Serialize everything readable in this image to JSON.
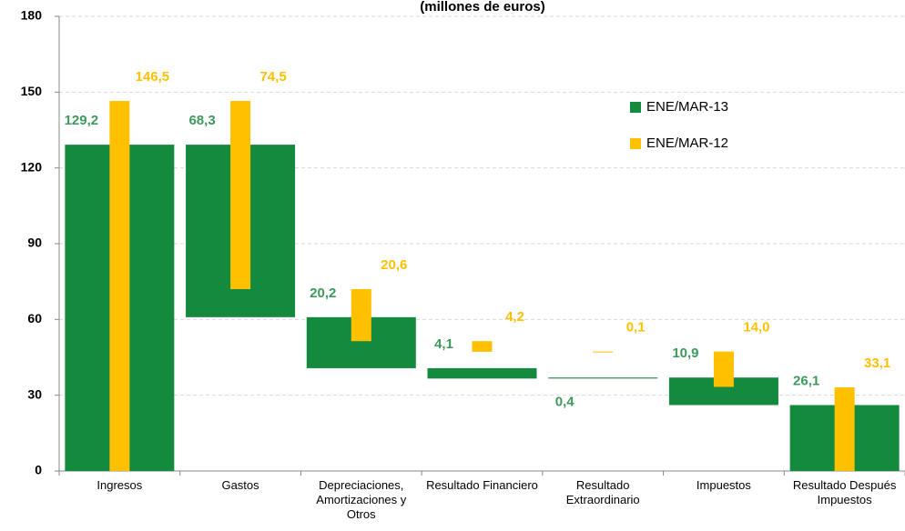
{
  "chart_data": {
    "type": "waterfall",
    "subtitle": "(millones de euros)",
    "categories": [
      "Ingresos",
      "Gastos",
      "Depreciaciones, Amortizaciones y Otros",
      "Resultado Financiero",
      "Resultado Extraordinario",
      "Impuestos",
      "Resultado Después Impuestos"
    ],
    "measures": [
      "total",
      "decrease",
      "decrease",
      "decrease",
      "increase",
      "decrease",
      "total"
    ],
    "series": [
      {
        "name": "ENE/MAR-13",
        "color": "#138a3d",
        "label_color": "#3d9a5c",
        "values": [
          129.2,
          68.3,
          20.2,
          4.1,
          0.4,
          10.9,
          26.1
        ],
        "value_labels": [
          "129,2",
          "68,3",
          "20,2",
          "4,1",
          "0,4",
          "10,9",
          "26,1"
        ]
      },
      {
        "name": "ENE/MAR-12",
        "color": "#ffc000",
        "label_color": "#ffc000",
        "values": [
          146.5,
          74.5,
          20.6,
          4.2,
          0.1,
          14.0,
          33.1
        ],
        "value_labels": [
          "146,5",
          "74,5",
          "20,6",
          "4,2",
          "0,1",
          "14,0",
          "33,1"
        ]
      }
    ],
    "ylim": [
      0,
      180
    ],
    "yticks": [
      0,
      30,
      60,
      90,
      120,
      150,
      180
    ],
    "grid": true,
    "legend": "upper right"
  }
}
